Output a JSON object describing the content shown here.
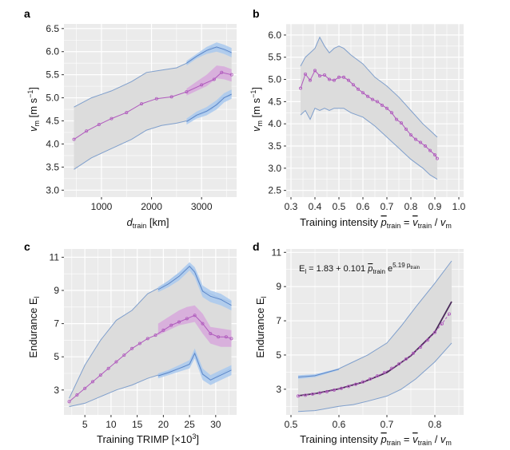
{
  "colors": {
    "panel_bg": "#ebebeb",
    "grid": "#ffffff",
    "outer_band": "#dcdcdc",
    "outer_band_edge": "#7f9fcc",
    "blue_band": "#a9c9ef",
    "blue_line": "#5b86c8",
    "purple_band": "#d7a8dc",
    "purple_line": "#b05abd",
    "fit_line": "#4b2a5a"
  },
  "chart_data": [
    {
      "panel_label": "a",
      "type": "line",
      "xlabel_main": "d",
      "xlabel_sub": "train",
      "xlabel_tail": " [km]",
      "ylabel_main": "v",
      "ylabel_sub": "m",
      "ylabel_tail": " [m s",
      "ylabel_sup": "−1",
      "ylabel_end": "]",
      "xlim": [
        250,
        3700
      ],
      "ylim": [
        2.85,
        6.6
      ],
      "xticks": [
        1000,
        2000,
        3000
      ],
      "xtick_labels": [
        "1000",
        "2000",
        "3000"
      ],
      "yticks": [
        3.0,
        3.5,
        4.0,
        4.5,
        5.0,
        5.5,
        6.0,
        6.5
      ],
      "ytick_labels": [
        "3.0",
        "3.5",
        "4.0",
        "4.5",
        "5.0",
        "5.5",
        "6.0",
        "6.5"
      ],
      "series": [
        {
          "name": "mean",
          "x": [
            450,
            700,
            950,
            1200,
            1500,
            1800,
            2100,
            2400,
            2700,
            3000,
            3250,
            3400,
            3600
          ],
          "y": [
            4.1,
            4.28,
            4.42,
            4.55,
            4.68,
            4.87,
            4.98,
            5.02,
            5.13,
            5.28,
            5.4,
            5.55,
            5.5
          ]
        },
        {
          "name": "outer_band",
          "x": [
            450,
            800,
            1200,
            1600,
            1900,
            2200,
            2500,
            2700,
            3000,
            3200,
            3400,
            3600
          ],
          "upper": [
            4.8,
            5.0,
            5.15,
            5.35,
            5.55,
            5.6,
            5.65,
            5.75,
            5.95,
            6.1,
            6.05,
            5.95
          ],
          "lower": [
            3.45,
            3.7,
            3.9,
            4.1,
            4.3,
            4.4,
            4.45,
            4.5,
            4.65,
            4.75,
            5.0,
            5.05
          ]
        },
        {
          "name": "upper_blue_band",
          "x": [
            2700,
            2900,
            3100,
            3300,
            3450,
            3600
          ],
          "upper": [
            5.8,
            5.95,
            6.1,
            6.2,
            6.15,
            6.08
          ],
          "lower": [
            5.7,
            5.85,
            5.95,
            6.0,
            5.95,
            5.88
          ]
        },
        {
          "name": "lower_blue_band",
          "x": [
            2700,
            2900,
            3100,
            3300,
            3450,
            3600
          ],
          "upper": [
            4.55,
            4.7,
            4.8,
            4.95,
            5.1,
            5.18
          ],
          "lower": [
            4.42,
            4.55,
            4.62,
            4.75,
            4.9,
            4.98
          ]
        },
        {
          "name": "purple_band",
          "x": [
            2700,
            2900,
            3100,
            3300,
            3450,
            3600
          ],
          "upper": [
            5.2,
            5.35,
            5.5,
            5.7,
            5.68,
            5.62
          ],
          "lower": [
            5.05,
            5.15,
            5.25,
            5.42,
            5.4,
            5.35
          ]
        }
      ]
    },
    {
      "panel_label": "b",
      "type": "line",
      "xlabel_main": "Training intensity ",
      "xlabel_p": "p",
      "xlabel_sub": "train",
      "xlabel_eq": " = ",
      "xlabel_v": "v",
      "xlabel_sub2": "train",
      "xlabel_slash": " / ",
      "xlabel_v2": "v",
      "xlabel_sub3": "m",
      "ylabel_main": "v",
      "ylabel_sub": "m",
      "ylabel_tail": " [m s",
      "ylabel_sup": "−1",
      "ylabel_end": "]",
      "xlim": [
        0.28,
        1.02
      ],
      "ylim": [
        2.35,
        6.25
      ],
      "xticks": [
        0.3,
        0.4,
        0.5,
        0.6,
        0.7,
        0.8,
        0.9,
        1.0
      ],
      "xtick_labels": [
        "0.3",
        "0.4",
        "0.5",
        "0.6",
        "0.7",
        "0.8",
        "0.9",
        "1.0"
      ],
      "yticks": [
        2.5,
        3.0,
        3.5,
        4.0,
        4.5,
        5.0,
        5.5,
        6.0
      ],
      "ytick_labels": [
        "2.5",
        "3.0",
        "3.5",
        "4.0",
        "4.5",
        "5.0",
        "5.5",
        "6.0"
      ],
      "series": [
        {
          "name": "mean",
          "x": [
            0.34,
            0.36,
            0.38,
            0.4,
            0.42,
            0.44,
            0.46,
            0.48,
            0.5,
            0.52,
            0.54,
            0.56,
            0.58,
            0.6,
            0.62,
            0.64,
            0.66,
            0.68,
            0.7,
            0.72,
            0.74,
            0.76,
            0.78,
            0.8,
            0.82,
            0.84,
            0.86,
            0.88,
            0.9,
            0.91
          ],
          "y": [
            4.8,
            5.12,
            4.98,
            5.2,
            5.08,
            5.1,
            5.0,
            4.98,
            5.05,
            5.05,
            4.98,
            4.88,
            4.78,
            4.7,
            4.62,
            4.55,
            4.5,
            4.42,
            4.35,
            4.25,
            4.1,
            4.02,
            3.88,
            3.75,
            3.65,
            3.58,
            3.5,
            3.4,
            3.3,
            3.22
          ]
        },
        {
          "name": "outer_band",
          "x": [
            0.34,
            0.36,
            0.38,
            0.4,
            0.42,
            0.44,
            0.46,
            0.48,
            0.5,
            0.52,
            0.55,
            0.6,
            0.65,
            0.7,
            0.75,
            0.8,
            0.85,
            0.88,
            0.91
          ],
          "upper": [
            5.3,
            5.5,
            5.6,
            5.7,
            5.95,
            5.75,
            5.6,
            5.7,
            5.75,
            5.7,
            5.55,
            5.35,
            5.05,
            4.85,
            4.6,
            4.3,
            4.0,
            3.85,
            3.7
          ],
          "lower": [
            4.2,
            4.3,
            4.1,
            4.35,
            4.3,
            4.35,
            4.3,
            4.35,
            4.35,
            4.35,
            4.25,
            4.15,
            3.95,
            3.7,
            3.45,
            3.2,
            3.0,
            2.85,
            2.75
          ]
        }
      ]
    },
    {
      "panel_label": "c",
      "type": "line",
      "xlabel_main": "Training TRIMP [×10",
      "xlabel_sup": "3",
      "xlabel_end": "]",
      "ylabel_main": "Endurance E",
      "ylabel_sub": "l",
      "xlim": [
        1,
        34
      ],
      "ylim": [
        1.5,
        11.5
      ],
      "xticks": [
        5,
        10,
        15,
        20,
        25,
        30
      ],
      "xtick_labels": [
        "5",
        "10",
        "15",
        "20",
        "25",
        "30"
      ],
      "yticks": [
        3,
        5,
        7,
        9,
        11
      ],
      "ytick_labels": [
        "3",
        "5",
        "7",
        "9",
        "11"
      ],
      "series": [
        {
          "name": "mean",
          "x": [
            2,
            3.5,
            5,
            6.5,
            8,
            9.5,
            11,
            12.5,
            14,
            15.5,
            17,
            18.5,
            20,
            21.5,
            23,
            24.5,
            26,
            27.5,
            29,
            30.5,
            32,
            33
          ],
          "y": [
            2.3,
            2.7,
            3.1,
            3.5,
            3.9,
            4.3,
            4.7,
            5.1,
            5.5,
            5.8,
            6.1,
            6.3,
            6.6,
            6.9,
            7.1,
            7.3,
            7.5,
            7.0,
            6.4,
            6.2,
            6.2,
            6.1
          ]
        },
        {
          "name": "outer_band",
          "x": [
            2,
            5,
            8,
            11,
            14,
            17,
            20,
            22,
            24,
            25,
            26,
            27.5,
            29,
            31,
            33
          ],
          "upper": [
            2.5,
            4.5,
            6.0,
            7.2,
            7.8,
            8.8,
            9.3,
            9.8,
            10.2,
            10.5,
            10.2,
            9.0,
            8.8,
            8.5,
            8.3
          ],
          "lower": [
            2.0,
            2.2,
            2.6,
            3.0,
            3.3,
            3.7,
            4.0,
            4.2,
            4.4,
            4.6,
            5.3,
            4.0,
            3.6,
            4.0,
            4.3
          ]
        },
        {
          "name": "upper_blue_band",
          "x": [
            19,
            21,
            23,
            25,
            26,
            27.5,
            29,
            31,
            33
          ],
          "upper": [
            9.2,
            9.6,
            10.1,
            10.7,
            10.4,
            9.3,
            9.0,
            8.8,
            8.4
          ],
          "lower": [
            8.9,
            9.2,
            9.6,
            10.2,
            9.8,
            8.6,
            8.3,
            8.1,
            7.8
          ]
        },
        {
          "name": "lower_blue_band",
          "x": [
            19,
            21,
            23,
            25,
            26,
            27.5,
            29,
            31,
            33
          ],
          "upper": [
            4.0,
            4.2,
            4.5,
            4.8,
            5.5,
            4.3,
            3.9,
            4.2,
            4.5
          ],
          "lower": [
            3.7,
            3.9,
            4.1,
            4.3,
            4.9,
            3.6,
            3.3,
            3.6,
            3.9
          ]
        },
        {
          "name": "purple_band",
          "x": [
            19,
            21,
            23,
            24.5,
            26,
            27.5,
            29,
            31,
            33
          ],
          "upper": [
            7.0,
            7.4,
            7.8,
            8.0,
            8.1,
            7.6,
            6.8,
            6.7,
            6.6
          ],
          "lower": [
            6.3,
            6.6,
            6.9,
            7.0,
            7.1,
            6.4,
            5.8,
            5.6,
            5.6
          ]
        }
      ]
    },
    {
      "panel_label": "d",
      "type": "line",
      "xlabel_main": "Training intensity ",
      "xlabel_p": "p",
      "xlabel_sub": "train",
      "xlabel_eq": " = ",
      "xlabel_v": "v",
      "xlabel_sub2": "train",
      "xlabel_slash": " / ",
      "xlabel_v2": "v",
      "xlabel_sub3": "m",
      "ylabel_main": "Endurance E",
      "ylabel_sub": "l",
      "annotation_main": "E",
      "annotation_sub": "l",
      "annotation_mid": " = 1.83 + 0.101 ",
      "annotation_p": "p",
      "annotation_psub": "train",
      "annotation_e": " e",
      "annotation_sup": "5.19 p",
      "annotation_supsub": "train",
      "xlim": [
        0.49,
        0.86
      ],
      "ylim": [
        1.5,
        11.2
      ],
      "xticks": [
        0.5,
        0.6,
        0.7,
        0.8
      ],
      "xtick_labels": [
        "0.5",
        "0.6",
        "0.7",
        "0.8"
      ],
      "yticks": [
        3,
        5,
        7,
        9,
        11
      ],
      "ytick_labels": [
        "3",
        "5",
        "7",
        "9",
        "11"
      ],
      "series": [
        {
          "name": "mean",
          "x": [
            0.515,
            0.53,
            0.545,
            0.56,
            0.575,
            0.59,
            0.605,
            0.62,
            0.635,
            0.65,
            0.665,
            0.68,
            0.695,
            0.71,
            0.725,
            0.74,
            0.755,
            0.77,
            0.785,
            0.8,
            0.815,
            0.83
          ],
          "y": [
            2.6,
            2.65,
            2.72,
            2.78,
            2.86,
            2.95,
            3.05,
            3.16,
            3.29,
            3.43,
            3.6,
            3.78,
            3.98,
            4.22,
            4.48,
            4.77,
            5.1,
            5.46,
            5.87,
            6.32,
            6.83,
            7.4
          ]
        },
        {
          "name": "fit",
          "x": [
            0.515,
            0.55,
            0.6,
            0.65,
            0.7,
            0.75,
            0.8,
            0.835
          ],
          "y": [
            2.62,
            2.74,
            3.02,
            3.41,
            3.98,
            4.96,
            6.34,
            8.12
          ]
        },
        {
          "name": "outer_band",
          "x": [
            0.515,
            0.55,
            0.6,
            0.63,
            0.66,
            0.7,
            0.73,
            0.76,
            0.8,
            0.835
          ],
          "upper": [
            3.7,
            3.8,
            4.2,
            4.6,
            5.0,
            5.7,
            6.7,
            7.8,
            9.2,
            10.5
          ],
          "lower": [
            1.7,
            1.75,
            2.0,
            2.1,
            2.3,
            2.6,
            3.0,
            3.6,
            4.6,
            5.7
          ]
        },
        {
          "name": "upper_blue_band",
          "x": [
            0.515,
            0.55,
            0.6
          ],
          "upper": [
            3.82,
            3.88,
            4.22
          ],
          "lower": [
            3.6,
            3.7,
            4.12
          ]
        }
      ]
    }
  ]
}
